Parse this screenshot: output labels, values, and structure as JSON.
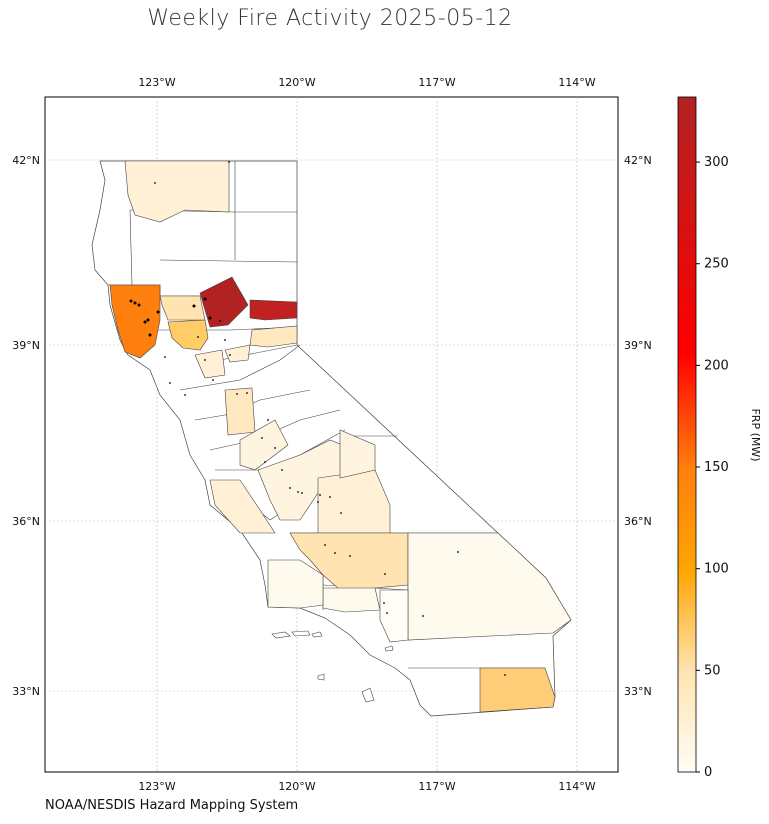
{
  "title": "Weekly Fire Activity 2025-05-12",
  "credit": "NOAA/NESDIS Hazard Mapping System",
  "colorbar": {
    "label": "FRP (MW)",
    "ticks": [
      "0",
      "50",
      "100",
      "150",
      "200",
      "250",
      "300"
    ]
  },
  "axes": {
    "lon_labels": [
      "123°W",
      "120°W",
      "117°W",
      "114°W"
    ],
    "lat_labels": [
      "42°N",
      "39°N",
      "36°N",
      "33°N"
    ]
  },
  "colors": {
    "scale": [
      "#fffdf5",
      "#fff0d6",
      "#ffe3b0",
      "#ffcc66",
      "#ffa500",
      "#ff7f0e",
      "#ff2400",
      "#b22222"
    ],
    "county_border": "#444444",
    "hotspot": "#000000",
    "grid": "#bbbbbb"
  },
  "chart_data": {
    "type": "heatmap",
    "title": "Weekly Fire Activity 2025-05-12",
    "colorbar_label": "FRP (MW)",
    "colorbar_range": [
      0,
      330
    ],
    "regions_frp": [
      {
        "id": "northwest-inland",
        "frp": 328
      },
      {
        "id": "northeast-inland",
        "frp": 315
      },
      {
        "id": "north-coast",
        "frp": 140
      },
      {
        "id": "imperial",
        "frp": 45
      },
      {
        "id": "central-north",
        "frp": 45
      },
      {
        "id": "kern",
        "frp": 30
      },
      {
        "id": "inyo-south",
        "frp": 25
      },
      {
        "id": "siskiyou",
        "frp": 15
      },
      {
        "id": "san-bernardino",
        "frp": 8
      },
      {
        "id": "central-valley",
        "frp": 12
      }
    ]
  }
}
